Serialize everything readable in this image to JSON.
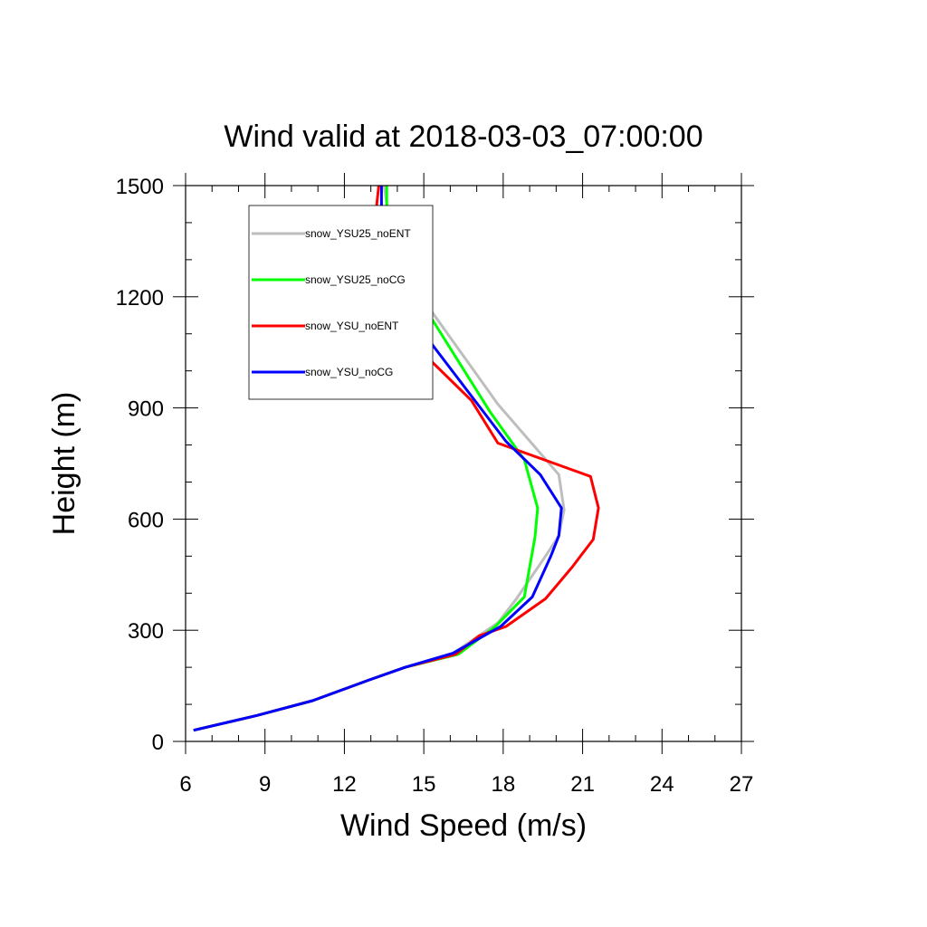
{
  "chart_data": {
    "type": "line",
    "title": "Wind valid at 2018-03-03_07:00:00",
    "xlabel": "Wind Speed (m/s)",
    "ylabel": "Height (m)",
    "xlim": [
      6,
      27
    ],
    "ylim": [
      0,
      1500
    ],
    "xticks": [
      6,
      9,
      12,
      15,
      18,
      21,
      24,
      27
    ],
    "yticks": [
      0,
      300,
      600,
      900,
      1200,
      1500
    ],
    "grid": false,
    "legend": "top-left, inside plot, framed box",
    "series": [
      {
        "name": "snow_YSU25_noENT",
        "color": "#bebebe",
        "points": [
          [
            6.3,
            30
          ],
          [
            8.7,
            70
          ],
          [
            10.8,
            110
          ],
          [
            12.9,
            165
          ],
          [
            14.3,
            200
          ],
          [
            16.1,
            238
          ],
          [
            17.8,
            320
          ],
          [
            18.5,
            385
          ],
          [
            19.6,
            500
          ],
          [
            20.1,
            555
          ],
          [
            20.3,
            625
          ],
          [
            20.1,
            720
          ],
          [
            17.8,
            910
          ],
          [
            15.0,
            1190
          ],
          [
            14.0,
            1290
          ],
          [
            13.7,
            1400
          ],
          [
            13.5,
            1500
          ]
        ]
      },
      {
        "name": "snow_YSU25_noCG",
        "color": "#00ff00",
        "points": [
          [
            6.3,
            30
          ],
          [
            8.7,
            70
          ],
          [
            10.8,
            110
          ],
          [
            12.9,
            165
          ],
          [
            14.3,
            200
          ],
          [
            16.3,
            235
          ],
          [
            17.7,
            310
          ],
          [
            18.8,
            390
          ],
          [
            19.2,
            550
          ],
          [
            19.3,
            630
          ],
          [
            18.8,
            760
          ],
          [
            17.5,
            890
          ],
          [
            15.0,
            1175
          ],
          [
            13.9,
            1300
          ],
          [
            13.6,
            1400
          ],
          [
            13.6,
            1500
          ]
        ]
      },
      {
        "name": "snow_YSU_noENT",
        "color": "#ff0000",
        "points": [
          [
            6.3,
            30
          ],
          [
            8.7,
            70
          ],
          [
            10.8,
            110
          ],
          [
            12.9,
            165
          ],
          [
            14.3,
            200
          ],
          [
            16.2,
            235
          ],
          [
            17.1,
            285
          ],
          [
            18.1,
            310
          ],
          [
            19.6,
            385
          ],
          [
            20.6,
            470
          ],
          [
            21.4,
            545
          ],
          [
            21.6,
            630
          ],
          [
            21.3,
            715
          ],
          [
            17.8,
            805
          ],
          [
            16.8,
            920
          ],
          [
            14.3,
            1095
          ],
          [
            13.3,
            1210
          ],
          [
            13.0,
            1300
          ],
          [
            13.3,
            1500
          ]
        ]
      },
      {
        "name": "snow_YSU_noCG",
        "color": "#0000ff",
        "points": [
          [
            6.3,
            30
          ],
          [
            8.7,
            70
          ],
          [
            10.8,
            110
          ],
          [
            12.9,
            165
          ],
          [
            14.3,
            200
          ],
          [
            16.1,
            238
          ],
          [
            17.9,
            310
          ],
          [
            19.1,
            390
          ],
          [
            19.8,
            500
          ],
          [
            20.1,
            555
          ],
          [
            20.2,
            630
          ],
          [
            19.4,
            720
          ],
          [
            18.1,
            810
          ],
          [
            16.5,
            960
          ],
          [
            14.9,
            1110
          ],
          [
            13.6,
            1190
          ],
          [
            13.2,
            1300
          ],
          [
            13.4,
            1400
          ],
          [
            13.4,
            1500
          ]
        ]
      }
    ]
  }
}
